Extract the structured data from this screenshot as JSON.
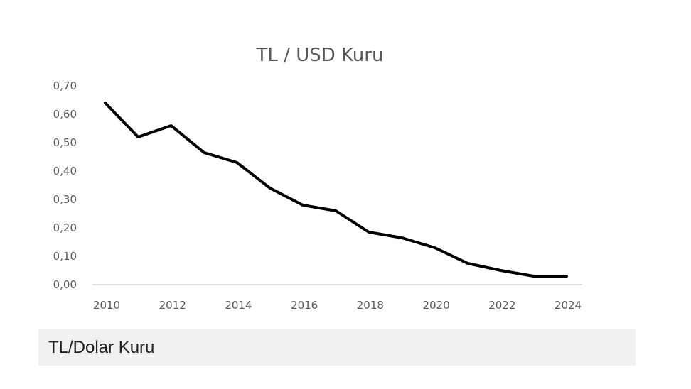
{
  "chart_data": {
    "type": "line",
    "title": "TL / USD Kuru",
    "xlabel": "",
    "ylabel": "",
    "x": [
      2010,
      2011,
      2012,
      2013,
      2014,
      2015,
      2016,
      2017,
      2018,
      2019,
      2020,
      2021,
      2022,
      2023,
      2024
    ],
    "series": [
      {
        "values": [
          0.64,
          0.52,
          0.56,
          0.465,
          0.43,
          0.34,
          0.28,
          0.26,
          0.185,
          0.165,
          0.13,
          0.075,
          0.05,
          0.03,
          0.03
        ],
        "color": "#000000"
      }
    ],
    "xlim": [
      2010,
      2024
    ],
    "ylim": [
      0,
      0.7
    ],
    "x_tick_labels": [
      "2010",
      "2012",
      "2014",
      "2016",
      "2018",
      "2020",
      "2022",
      "2024"
    ],
    "y_tick_labels": [
      "0,00",
      "0,10",
      "0,20",
      "0,30",
      "0,40",
      "0,50",
      "0,60",
      "0,70"
    ],
    "grid": false,
    "legend": "none"
  },
  "caption": {
    "text": "TL/Dolar Kuru"
  }
}
